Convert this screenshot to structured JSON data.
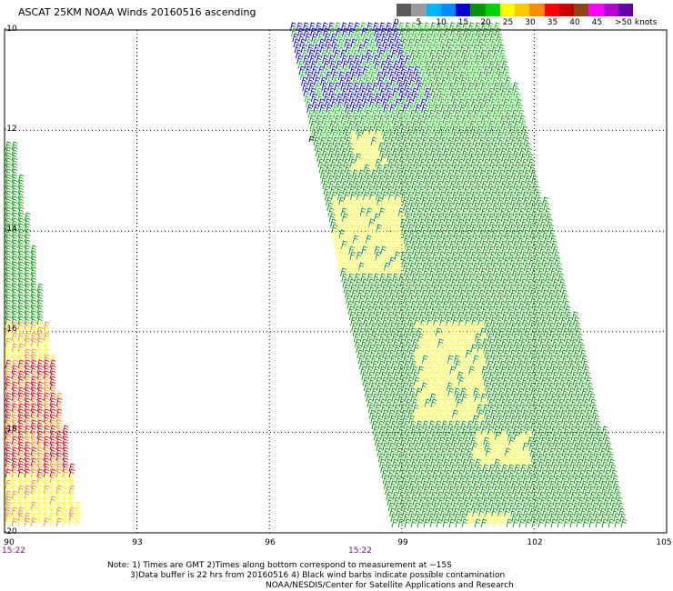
{
  "title": "ASCAT 25KM NOAA Winds 20160516 ascending",
  "legend": {
    "swatches": [
      "#5a5a5a",
      "#9a9a9a",
      "#00b4ff",
      "#008cff",
      "#0000d2",
      "#009600",
      "#00d200",
      "#ffff00",
      "#ffc800",
      "#ff8c00",
      "#ff0000",
      "#c80000",
      "#8c4614",
      "#ff00ff",
      "#b400d2",
      "#6400aa"
    ],
    "labels": [
      "0",
      "5",
      "10",
      "15",
      "20",
      "25",
      "30",
      "35",
      "40",
      "45",
      ">50 knots"
    ]
  },
  "axes": {
    "lat_labels": [
      "-10",
      "-12",
      "-14",
      "-16",
      "-18",
      "-20"
    ],
    "lon_labels": [
      "90",
      "93",
      "96",
      "99",
      "102",
      "105"
    ],
    "time_labels": [
      "15:22",
      "15:22"
    ]
  },
  "notes": {
    "line1": "Note: 1) Times are GMT 2)Times along bottom correspond to measurement at −15S",
    "line2": "3)Data buffer is 22 hrs from 20160516 4) Black wind barbs indicate possible contamination",
    "line3": "NOAA/NESDIS/Center for Satellite Applications and Research"
  },
  "map_data": {
    "lon_range": [
      90,
      105
    ],
    "lat_range": [
      -20,
      -10
    ],
    "grid": true,
    "barb_colors": {
      "blue": "#0000d2",
      "green_dark": "#009600",
      "green_light": "#00d200",
      "yellow": "#ffff00",
      "orange": "#ff8c00",
      "red": "#c80000",
      "black": "#000000"
    }
  }
}
